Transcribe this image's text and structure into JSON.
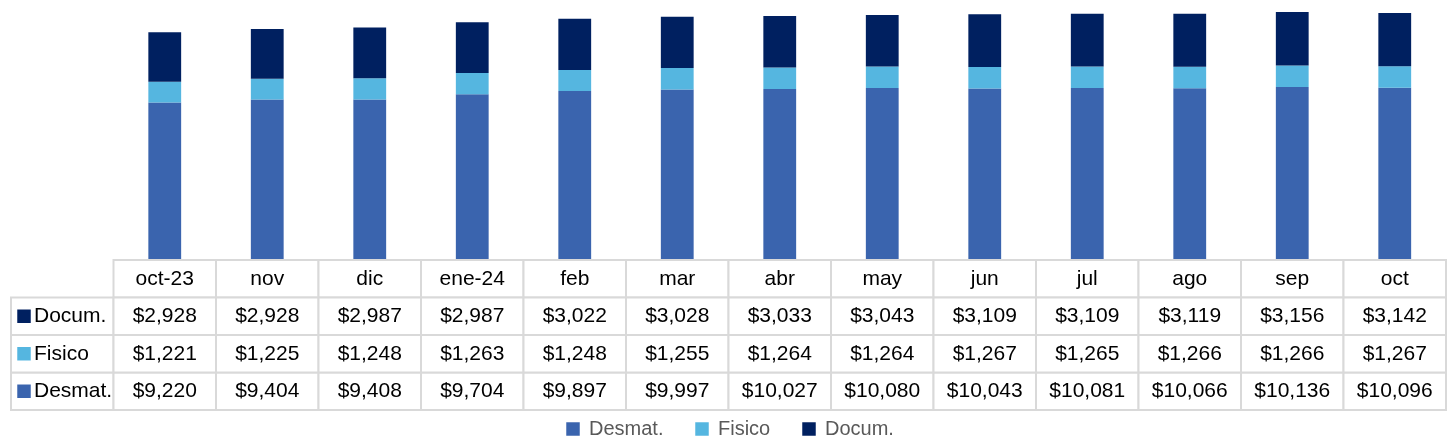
{
  "chart_data": {
    "type": "bar",
    "stacked": true,
    "legend": "bottom",
    "tick_labels": "x",
    "categories": [
      "oct-23",
      "nov",
      "dic",
      "ene-24",
      "feb",
      "mar",
      "abr",
      "may",
      "jun",
      "jul",
      "ago",
      "sep",
      "oct"
    ],
    "series": [
      {
        "name": "Desmat.",
        "color": "#3a64ae",
        "values": [
          9220,
          9404,
          9408,
          9704,
          9897,
          9997,
          10027,
          10080,
          10043,
          10081,
          10066,
          10136,
          10096
        ],
        "value_labels": [
          "$9,220",
          "$9,404",
          "$9,408",
          "$9,704",
          "$9,897",
          "$9,997",
          "$10,027",
          "$10,080",
          "$10,043",
          "$10,081",
          "$10,066",
          "$10,136",
          "$10,096"
        ]
      },
      {
        "name": "Fisico",
        "color": "#55b6e0",
        "values": [
          1221,
          1225,
          1248,
          1263,
          1248,
          1255,
          1264,
          1264,
          1267,
          1265,
          1266,
          1266,
          1267
        ],
        "value_labels": [
          "$1,221",
          "$1,225",
          "$1,248",
          "$1,263",
          "$1,248",
          "$1,255",
          "$1,264",
          "$1,264",
          "$1,267",
          "$1,265",
          "$1,266",
          "$1,266",
          "$1,267"
        ]
      },
      {
        "name": "Docum.",
        "color": "#002060",
        "values": [
          2928,
          2928,
          2987,
          2987,
          3022,
          3028,
          3033,
          3043,
          3109,
          3109,
          3119,
          3156,
          3142
        ],
        "value_labels": [
          "$2,928",
          "$2,928",
          "$2,987",
          "$2,987",
          "$3,022",
          "$3,028",
          "$3,033",
          "$3,043",
          "$3,109",
          "$3,109",
          "$3,119",
          "$3,156",
          "$3,142"
        ]
      }
    ]
  }
}
